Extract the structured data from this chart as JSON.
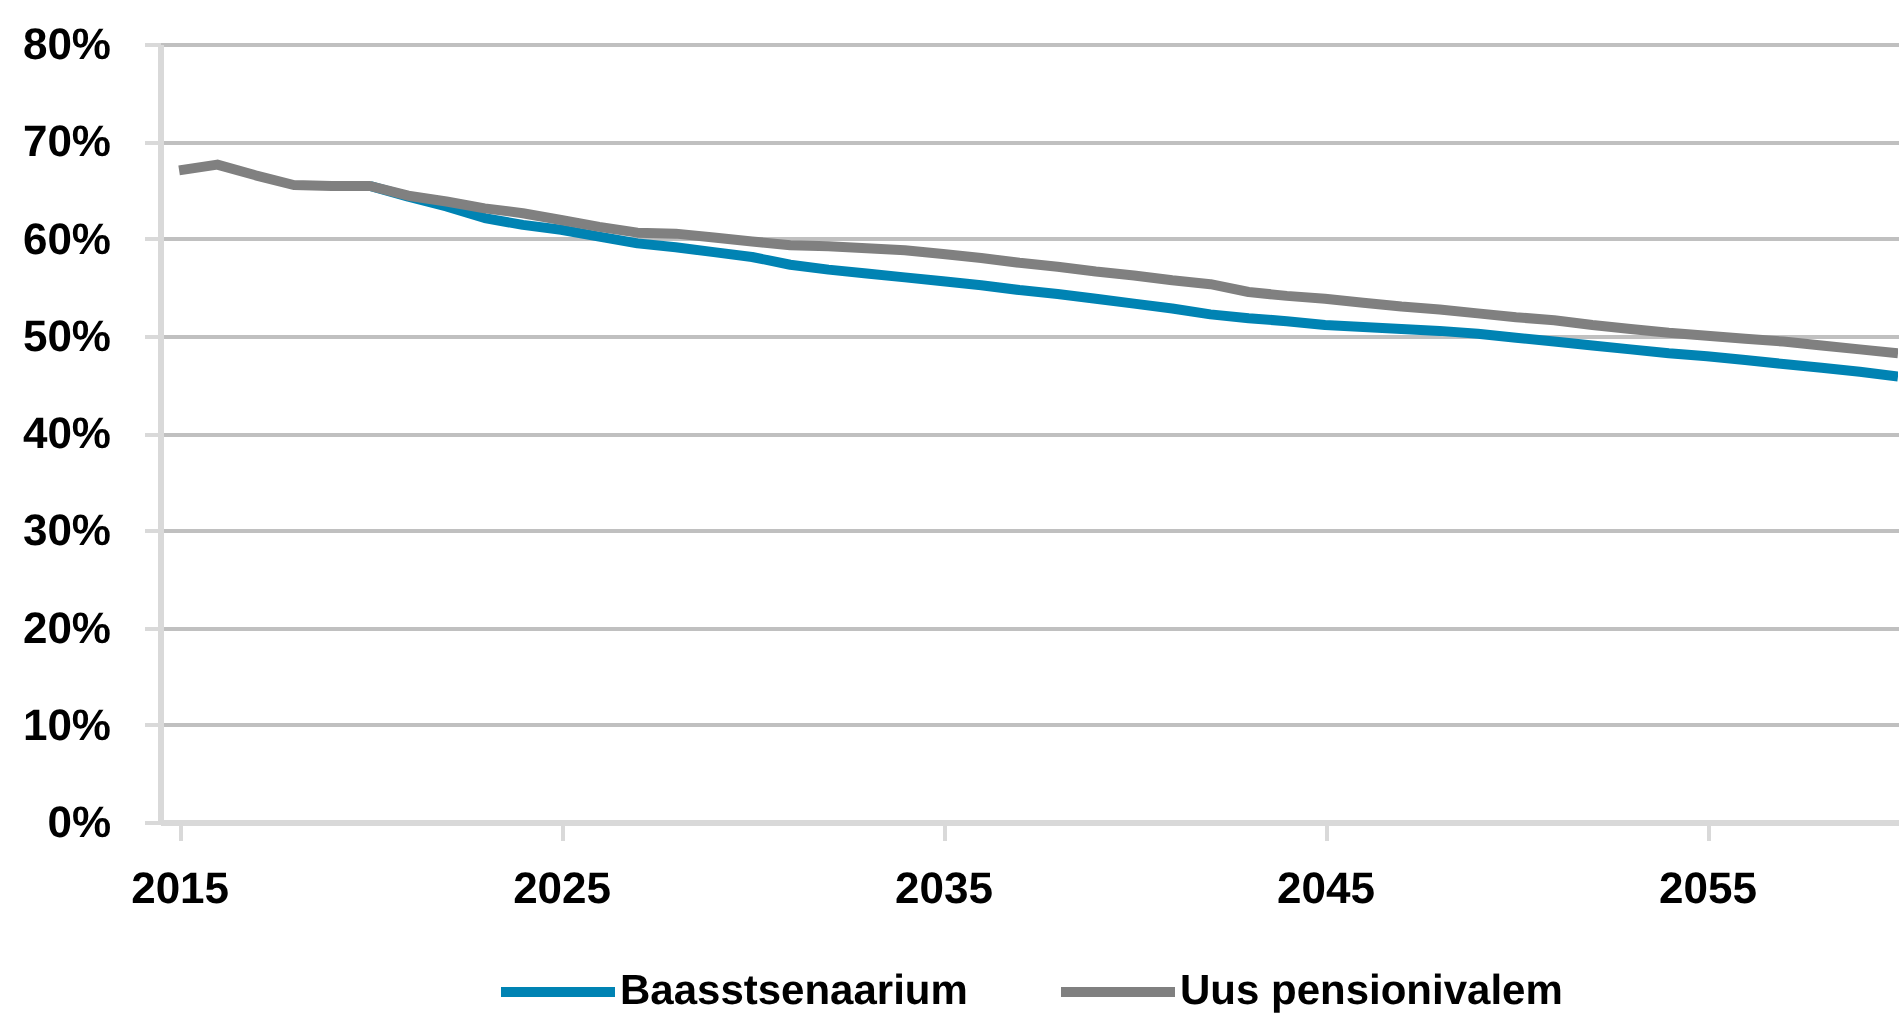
{
  "chart_data": {
    "type": "line",
    "x": [
      2015,
      2016,
      2017,
      2018,
      2019,
      2020,
      2021,
      2022,
      2023,
      2024,
      2025,
      2026,
      2027,
      2028,
      2029,
      2030,
      2031,
      2032,
      2033,
      2034,
      2035,
      2036,
      2037,
      2038,
      2039,
      2040,
      2041,
      2042,
      2043,
      2044,
      2045,
      2046,
      2047,
      2048,
      2049,
      2050,
      2051,
      2052,
      2053,
      2054,
      2055,
      2056,
      2057,
      2058,
      2059,
      2060
    ],
    "xlim": [
      2014.5,
      2060
    ],
    "xticks": [
      2015,
      2025,
      2035,
      2045,
      2055
    ],
    "ylim": [
      0,
      80
    ],
    "yticks": [
      {
        "value": 0,
        "label": "0%"
      },
      {
        "value": 10,
        "label": "10%"
      },
      {
        "value": 20,
        "label": "20%"
      },
      {
        "value": 30,
        "label": "30%"
      },
      {
        "value": 40,
        "label": "40%"
      },
      {
        "value": 50,
        "label": "50%"
      },
      {
        "value": 60,
        "label": "60%"
      },
      {
        "value": 70,
        "label": "70%"
      },
      {
        "value": 80,
        "label": "80%"
      }
    ],
    "grid": "y",
    "legend": "bottom",
    "series": [
      {
        "name": "Baasstsenaarium",
        "color": "#0083b3",
        "values": [
          null,
          null,
          null,
          null,
          null,
          65.4,
          64.3,
          63.3,
          62.1,
          61.4,
          60.9,
          60.2,
          59.5,
          59.1,
          58.6,
          58.1,
          57.3,
          56.8,
          56.4,
          56.0,
          55.6,
          55.2,
          54.7,
          54.3,
          53.8,
          53.3,
          52.8,
          52.2,
          51.8,
          51.5,
          51.1,
          50.9,
          50.7,
          50.5,
          50.2,
          49.8,
          49.4,
          49.0,
          48.6,
          48.2,
          47.9,
          47.5,
          47.1,
          46.7,
          46.3,
          45.8
        ]
      },
      {
        "name": "Uus pensionivalem",
        "color": "#808080",
        "values": [
          67.0,
          67.6,
          66.5,
          65.5,
          65.4,
          65.4,
          64.4,
          63.8,
          63.1,
          62.6,
          61.9,
          61.2,
          60.6,
          60.5,
          60.1,
          59.7,
          59.3,
          59.2,
          59.0,
          58.8,
          58.4,
          58.0,
          57.5,
          57.1,
          56.6,
          56.2,
          55.7,
          55.3,
          54.5,
          54.1,
          53.8,
          53.4,
          53.0,
          52.7,
          52.3,
          51.9,
          51.6,
          51.1,
          50.7,
          50.3,
          50.0,
          49.7,
          49.4,
          49.0,
          48.6,
          48.2
        ]
      }
    ]
  }
}
